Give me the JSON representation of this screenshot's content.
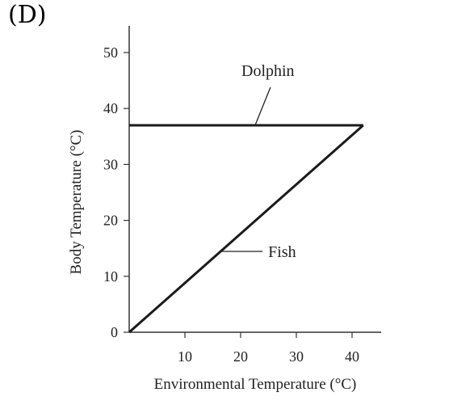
{
  "panel_label": "(D)",
  "chart_data": {
    "type": "line",
    "xlabel": "Environmental Temperature (°C)",
    "ylabel": "Body Temperature (°C)",
    "xlim": [
      0,
      45
    ],
    "ylim": [
      0,
      55
    ],
    "xticks": [
      10,
      20,
      30,
      40
    ],
    "yticks": [
      0,
      10,
      20,
      30,
      40,
      50
    ],
    "grid": false,
    "series": [
      {
        "name": "Dolphin",
        "x": [
          0,
          42
        ],
        "y": [
          37,
          37
        ]
      },
      {
        "name": "Fish",
        "x": [
          0,
          42
        ],
        "y": [
          0,
          37
        ]
      }
    ],
    "annotations": [
      {
        "text": "Dolphin",
        "series": "Dolphin"
      },
      {
        "text": "Fish",
        "series": "Fish"
      }
    ],
    "line_color": "#1a1a1a"
  }
}
